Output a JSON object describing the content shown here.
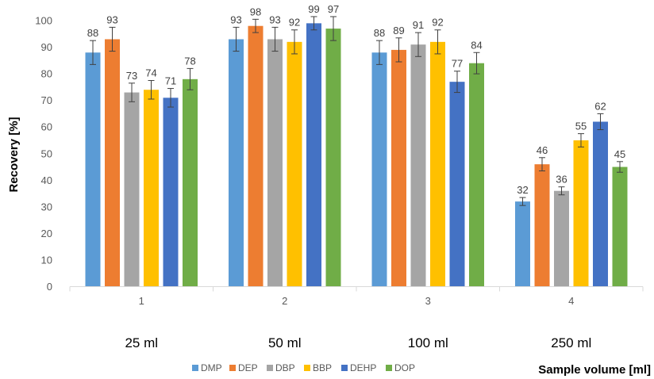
{
  "chart_data": {
    "type": "bar",
    "categories": [
      "1",
      "2",
      "3",
      "4"
    ],
    "group_labels": [
      "25 ml",
      "50 ml",
      "100 ml",
      "250 ml"
    ],
    "ylabel": "Recovery [%]",
    "xlabel": "Sample volume [ml]",
    "ylim": [
      0,
      100
    ],
    "yticks": [
      0,
      10,
      20,
      30,
      40,
      50,
      60,
      70,
      80,
      90,
      100
    ],
    "grid": false,
    "legend_position": "bottom",
    "series": [
      {
        "name": "DMP",
        "color": "#5B9BD5",
        "values": [
          88,
          93,
          88,
          32
        ],
        "errors": [
          4.5,
          4.5,
          4.5,
          1.5
        ]
      },
      {
        "name": "DEP",
        "color": "#ED7D31",
        "values": [
          93,
          98,
          89,
          46
        ],
        "errors": [
          4.5,
          2.5,
          4.5,
          2.5
        ]
      },
      {
        "name": "DBP",
        "color": "#A5A5A5",
        "values": [
          73,
          93,
          91,
          36
        ],
        "errors": [
          3.5,
          4.5,
          4.5,
          1.5
        ]
      },
      {
        "name": "BBP",
        "color": "#FFC000",
        "values": [
          74,
          92,
          92,
          55
        ],
        "errors": [
          3.5,
          4.5,
          4.5,
          2.5
        ]
      },
      {
        "name": "DEHP",
        "color": "#4472C4",
        "values": [
          71,
          99,
          77,
          62
        ],
        "errors": [
          3.5,
          2.5,
          4.0,
          3.0
        ]
      },
      {
        "name": "DOP",
        "color": "#70AD47",
        "values": [
          78,
          97,
          84,
          45
        ],
        "errors": [
          4.0,
          4.5,
          4.0,
          2.0
        ]
      }
    ]
  }
}
